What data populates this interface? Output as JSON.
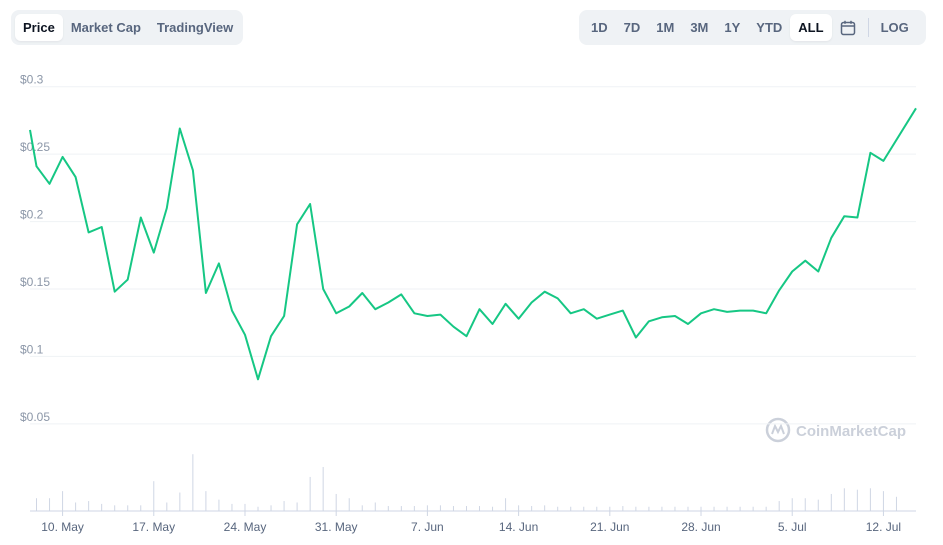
{
  "tabs_left": [
    {
      "label": "Price",
      "active": true
    },
    {
      "label": "Market Cap",
      "active": false
    },
    {
      "label": "TradingView",
      "active": false
    }
  ],
  "tabs_right": [
    {
      "label": "1D",
      "active": false
    },
    {
      "label": "7D",
      "active": false
    },
    {
      "label": "1M",
      "active": false
    },
    {
      "label": "3M",
      "active": false
    },
    {
      "label": "1Y",
      "active": false
    },
    {
      "label": "YTD",
      "active": false
    },
    {
      "label": "ALL",
      "active": true
    }
  ],
  "calendar_icon": "calendar-icon",
  "log_label": "LOG",
  "watermark": "CoinMarketCap",
  "colors": {
    "line": "#16c784",
    "grid": "#eff2f5",
    "volume": "#cfd6e4",
    "text": "#58667e"
  },
  "chart_data": {
    "type": "line",
    "title": "",
    "xlabel": "",
    "ylabel": "",
    "y_ticks": [
      "$0.3",
      "$0.25",
      "$0.2",
      "$0.15",
      "$0.1",
      "$0.05"
    ],
    "y_tick_values": [
      0.3,
      0.25,
      0.2,
      0.15,
      0.1,
      0.05
    ],
    "ylim": [
      0.038,
      0.305
    ],
    "x_ticks": [
      "10. May",
      "17. May",
      "24. May",
      "31. May",
      "7. Jun",
      "14. Jun",
      "21. Jun",
      "28. Jun",
      "5. Jul",
      "12. Jul"
    ],
    "x_tick_dates": [
      "2021-05-10",
      "2021-05-17",
      "2021-05-24",
      "2021-05-31",
      "2021-06-07",
      "2021-06-14",
      "2021-06-21",
      "2021-06-28",
      "2021-07-05",
      "2021-07-12"
    ],
    "xlim": [
      "2021-05-07 12:00",
      "2021-07-14 12:00"
    ],
    "grid": true,
    "series": [
      {
        "values": [
          [
            "2021-05-07 12:00",
            0.268
          ],
          [
            "2021-05-08 00:00",
            0.241
          ],
          [
            "2021-05-09 00:00",
            0.228
          ],
          [
            "2021-05-10 00:00",
            0.248
          ],
          [
            "2021-05-11 00:00",
            0.233
          ],
          [
            "2021-05-12 00:00",
            0.192
          ],
          [
            "2021-05-13 00:00",
            0.196
          ],
          [
            "2021-05-14 00:00",
            0.148
          ],
          [
            "2021-05-15 00:00",
            0.157
          ],
          [
            "2021-05-16 00:00",
            0.203
          ],
          [
            "2021-05-17 00:00",
            0.177
          ],
          [
            "2021-05-18 00:00",
            0.21
          ],
          [
            "2021-05-19 00:00",
            0.269
          ],
          [
            "2021-05-20 00:00",
            0.238
          ],
          [
            "2021-05-21 00:00",
            0.147
          ],
          [
            "2021-05-22 00:00",
            0.169
          ],
          [
            "2021-05-23 00:00",
            0.134
          ],
          [
            "2021-05-24 00:00",
            0.116
          ],
          [
            "2021-05-25 00:00",
            0.083
          ],
          [
            "2021-05-26 00:00",
            0.115
          ],
          [
            "2021-05-27 00:00",
            0.13
          ],
          [
            "2021-05-28 00:00",
            0.198
          ],
          [
            "2021-05-29 00:00",
            0.213
          ],
          [
            "2021-05-30 00:00",
            0.15
          ],
          [
            "2021-05-31 00:00",
            0.132
          ],
          [
            "2021-06-01 00:00",
            0.137
          ],
          [
            "2021-06-02 00:00",
            0.147
          ],
          [
            "2021-06-03 00:00",
            0.135
          ],
          [
            "2021-06-04 00:00",
            0.14
          ],
          [
            "2021-06-05 00:00",
            0.146
          ],
          [
            "2021-06-06 00:00",
            0.132
          ],
          [
            "2021-06-07 00:00",
            0.13
          ],
          [
            "2021-06-08 00:00",
            0.131
          ],
          [
            "2021-06-09 00:00",
            0.122
          ],
          [
            "2021-06-10 00:00",
            0.115
          ],
          [
            "2021-06-11 00:00",
            0.135
          ],
          [
            "2021-06-12 00:00",
            0.124
          ],
          [
            "2021-06-13 00:00",
            0.139
          ],
          [
            "2021-06-14 00:00",
            0.128
          ],
          [
            "2021-06-15 00:00",
            0.14
          ],
          [
            "2021-06-16 00:00",
            0.148
          ],
          [
            "2021-06-17 00:00",
            0.143
          ],
          [
            "2021-06-18 00:00",
            0.132
          ],
          [
            "2021-06-19 00:00",
            0.135
          ],
          [
            "2021-06-20 00:00",
            0.128
          ],
          [
            "2021-06-21 00:00",
            0.131
          ],
          [
            "2021-06-22 00:00",
            0.134
          ],
          [
            "2021-06-23 00:00",
            0.114
          ],
          [
            "2021-06-24 00:00",
            0.126
          ],
          [
            "2021-06-25 00:00",
            0.129
          ],
          [
            "2021-06-26 00:00",
            0.13
          ],
          [
            "2021-06-27 00:00",
            0.124
          ],
          [
            "2021-06-28 00:00",
            0.132
          ],
          [
            "2021-06-29 00:00",
            0.135
          ],
          [
            "2021-06-30 00:00",
            0.133
          ],
          [
            "2021-07-01 00:00",
            0.134
          ],
          [
            "2021-07-02 00:00",
            0.134
          ],
          [
            "2021-07-03 00:00",
            0.132
          ],
          [
            "2021-07-04 00:00",
            0.149
          ],
          [
            "2021-07-05 00:00",
            0.163
          ],
          [
            "2021-07-06 00:00",
            0.171
          ],
          [
            "2021-07-07 00:00",
            0.163
          ],
          [
            "2021-07-08 00:00",
            0.188
          ],
          [
            "2021-07-09 00:00",
            0.204
          ],
          [
            "2021-07-10 00:00",
            0.203
          ],
          [
            "2021-07-11 00:00",
            0.251
          ],
          [
            "2021-07-12 00:00",
            0.245
          ],
          [
            "2021-07-14 12:00",
            0.284
          ]
        ]
      }
    ],
    "volume": [
      [
        "2021-05-08 00:00",
        0.18
      ],
      [
        "2021-05-09 00:00",
        0.18
      ],
      [
        "2021-05-10 00:00",
        0.28
      ],
      [
        "2021-05-11 00:00",
        0.12
      ],
      [
        "2021-05-12 00:00",
        0.14
      ],
      [
        "2021-05-13 00:00",
        0.1
      ],
      [
        "2021-05-14 00:00",
        0.08
      ],
      [
        "2021-05-15 00:00",
        0.08
      ],
      [
        "2021-05-16 00:00",
        0.08
      ],
      [
        "2021-05-17 00:00",
        0.42
      ],
      [
        "2021-05-18 00:00",
        0.12
      ],
      [
        "2021-05-19 00:00",
        0.26
      ],
      [
        "2021-05-20 00:00",
        0.8
      ],
      [
        "2021-05-21 00:00",
        0.28
      ],
      [
        "2021-05-22 00:00",
        0.16
      ],
      [
        "2021-05-23 00:00",
        0.1
      ],
      [
        "2021-05-24 00:00",
        0.1
      ],
      [
        "2021-05-25 00:00",
        0.06
      ],
      [
        "2021-05-26 00:00",
        0.08
      ],
      [
        "2021-05-27 00:00",
        0.14
      ],
      [
        "2021-05-28 00:00",
        0.12
      ],
      [
        "2021-05-29 00:00",
        0.48
      ],
      [
        "2021-05-30 00:00",
        0.62
      ],
      [
        "2021-05-31 00:00",
        0.24
      ],
      [
        "2021-06-01 00:00",
        0.18
      ],
      [
        "2021-06-02 00:00",
        0.08
      ],
      [
        "2021-06-03 00:00",
        0.12
      ],
      [
        "2021-06-04 00:00",
        0.07
      ],
      [
        "2021-06-05 00:00",
        0.07
      ],
      [
        "2021-06-06 00:00",
        0.07
      ],
      [
        "2021-06-07 00:00",
        0.08
      ],
      [
        "2021-06-08 00:00",
        0.08
      ],
      [
        "2021-06-09 00:00",
        0.07
      ],
      [
        "2021-06-10 00:00",
        0.07
      ],
      [
        "2021-06-11 00:00",
        0.07
      ],
      [
        "2021-06-12 00:00",
        0.06
      ],
      [
        "2021-06-13 00:00",
        0.18
      ],
      [
        "2021-06-14 00:00",
        0.08
      ],
      [
        "2021-06-15 00:00",
        0.07
      ],
      [
        "2021-06-16 00:00",
        0.08
      ],
      [
        "2021-06-17 00:00",
        0.06
      ],
      [
        "2021-06-18 00:00",
        0.06
      ],
      [
        "2021-06-19 00:00",
        0.06
      ],
      [
        "2021-06-20 00:00",
        0.06
      ],
      [
        "2021-06-21 00:00",
        0.06
      ],
      [
        "2021-06-22 00:00",
        0.07
      ],
      [
        "2021-06-23 00:00",
        0.06
      ],
      [
        "2021-06-24 00:00",
        0.06
      ],
      [
        "2021-06-25 00:00",
        0.06
      ],
      [
        "2021-06-26 00:00",
        0.06
      ],
      [
        "2021-06-27 00:00",
        0.06
      ],
      [
        "2021-06-28 00:00",
        0.06
      ],
      [
        "2021-06-29 00:00",
        0.06
      ],
      [
        "2021-06-30 00:00",
        0.06
      ],
      [
        "2021-07-01 00:00",
        0.06
      ],
      [
        "2021-07-02 00:00",
        0.06
      ],
      [
        "2021-07-03 00:00",
        0.06
      ],
      [
        "2021-07-04 00:00",
        0.14
      ],
      [
        "2021-07-05 00:00",
        0.18
      ],
      [
        "2021-07-06 00:00",
        0.18
      ],
      [
        "2021-07-07 00:00",
        0.16
      ],
      [
        "2021-07-08 00:00",
        0.24
      ],
      [
        "2021-07-09 00:00",
        0.32
      ],
      [
        "2021-07-10 00:00",
        0.3
      ],
      [
        "2021-07-11 00:00",
        0.32
      ],
      [
        "2021-07-12 00:00",
        0.28
      ],
      [
        "2021-07-13 00:00",
        0.2
      ]
    ]
  }
}
